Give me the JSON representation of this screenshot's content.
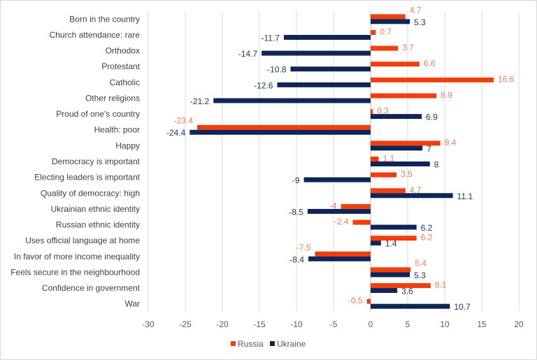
{
  "chart_data": {
    "type": "bar",
    "orientation": "horizontal",
    "categories": [
      "Born in the country",
      "Church attendance: rare",
      "Orthodox",
      "Protestant",
      "Catholic",
      "Other religions",
      "Proud of one's country",
      "Health: poor",
      "Happy",
      "Democracy is important",
      "Electing leaders is important",
      "Quality of democracy: high",
      "Ukrainian ethnic identity",
      "Russian ethnic identity",
      "Uses official language at home",
      "In favor of more income inequality",
      "Feels secure in the neighbourhood",
      "Confidence in government",
      "War"
    ],
    "series": [
      {
        "name": "Russia",
        "color": "#f23d0c",
        "values": [
          4.7,
          0.7,
          3.7,
          6.6,
          16.6,
          8.9,
          0.3,
          -23.4,
          9.4,
          1.1,
          3.5,
          4.7,
          -4,
          -2.4,
          6.2,
          -7.5,
          5.4,
          8.1,
          -0.5
        ],
        "labels": [
          "4.7",
          "0.7",
          "3.7",
          "6.6",
          "16.6",
          "8.9",
          "0.3",
          "-23.4",
          "9.4",
          "1.1",
          "3.5",
          "4.7",
          "-4",
          "-2.4",
          "6.2",
          "-7.5",
          "5.4",
          "8.1",
          "-0.5"
        ]
      },
      {
        "name": "Ukraine",
        "color": "#0e2556",
        "values": [
          5.3,
          -11.7,
          -14.7,
          -10.8,
          -12.6,
          -21.2,
          6.9,
          -24.4,
          7,
          8,
          -9,
          11.1,
          -8.5,
          6.2,
          1.4,
          -8.4,
          5.3,
          3.6,
          10.7
        ],
        "labels": [
          "5.3",
          "-11.7",
          "-14.7",
          "-10.8",
          "-12.6",
          "-21.2",
          "6.9",
          "-24.4",
          "7",
          "8",
          "-9",
          "11.1",
          "-8.5",
          "6.2",
          "1.4",
          "-8.4",
          "5.3",
          "3.6",
          "10.7"
        ]
      }
    ],
    "xlim": [
      -30,
      20
    ],
    "xticks": [
      "-30",
      "-25",
      "-20",
      "-15",
      "-10",
      "-5",
      "0",
      "5",
      "10",
      "15",
      "20"
    ],
    "grid": "vertical",
    "legend": "bottom",
    "title": "",
    "xlabel": "",
    "ylabel": ""
  }
}
